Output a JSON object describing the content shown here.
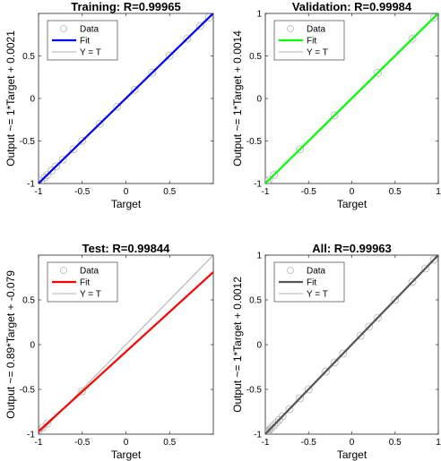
{
  "chart_data": [
    {
      "type": "scatter",
      "title": "Training: R=0.99965",
      "xlabel": "Target",
      "ylabel": "Output ~= 1*Target + 0.0021",
      "xlim": [
        -1,
        1
      ],
      "ylim": [
        -1,
        1
      ],
      "xticks": [
        -1,
        -0.5,
        0,
        0.5
      ],
      "yticks": [
        -1,
        -0.5,
        0,
        0.5
      ],
      "xtick_labels": [
        "-1",
        "-0.5",
        "0",
        "0.5"
      ],
      "ytick_labels": [
        "-1",
        "-0.5",
        "0",
        "0.5"
      ],
      "fit": {
        "slope": 1,
        "intercept": 0.0021,
        "color": "#0000ff"
      },
      "identity_color": "#9a9a9a",
      "points": {
        "x": [
          -1,
          -0.97,
          -0.93,
          -0.9,
          -0.85,
          -0.8,
          -0.72,
          -0.6,
          -0.5,
          -0.3,
          -0.1,
          0.1,
          0.3,
          0.5,
          0.7,
          0.85,
          0.95
        ],
        "y": [
          -1,
          -0.966,
          -0.93,
          -0.9,
          -0.848,
          -0.797,
          -0.717,
          -0.598,
          -0.497,
          -0.298,
          -0.097,
          0.102,
          0.302,
          0.502,
          0.703,
          0.852,
          0.952
        ]
      },
      "legend": {
        "placement": "top-left",
        "entries": [
          "Data",
          "Fit",
          "Y = T"
        ]
      }
    },
    {
      "type": "scatter",
      "title": "Validation: R=0.99984",
      "xlabel": "Target",
      "ylabel": "Output ~= 1*Target + 0.0014",
      "xlim": [
        -1,
        1
      ],
      "ylim": [
        -1,
        1
      ],
      "xticks": [
        -1,
        -0.5,
        0,
        0.5,
        1
      ],
      "yticks": [
        -1,
        -0.5,
        0,
        0.5,
        1
      ],
      "xtick_labels": [
        "-1",
        "-0.5",
        "0",
        "0.5",
        "1"
      ],
      "ytick_labels": [
        "-1",
        "-0.5",
        "0",
        "0.5",
        "1"
      ],
      "fit": {
        "slope": 1,
        "intercept": 0.0014,
        "color": "#00ff00"
      },
      "identity_color": "#9a9a9a",
      "points": {
        "x": [
          -1,
          -0.98,
          -0.96,
          -0.9,
          -0.6,
          -0.2,
          0.3,
          0.7,
          0.95,
          1
        ],
        "y": [
          -1,
          -0.978,
          -0.958,
          -0.899,
          -0.598,
          -0.198,
          0.302,
          0.701,
          0.951,
          1
        ]
      },
      "legend": {
        "placement": "top-left",
        "entries": [
          "Data",
          "Fit",
          "Y = T"
        ]
      }
    },
    {
      "type": "scatter",
      "title": "Test: R=0.99844",
      "xlabel": "Target",
      "ylabel": "Output ~= 0.89*Target + -0.079",
      "xlim": [
        -1,
        1
      ],
      "ylim": [
        -1,
        1
      ],
      "xticks": [
        -1,
        -0.5,
        0,
        0.5
      ],
      "yticks": [
        -1,
        -0.5,
        0,
        0.5
      ],
      "xtick_labels": [
        "-1",
        "-0.5",
        "0",
        "0.5"
      ],
      "ytick_labels": [
        "-1",
        "-0.5",
        "0",
        "0.5"
      ],
      "fit": {
        "slope": 0.89,
        "intercept": -0.079,
        "color": "#ff0000"
      },
      "identity_color": "#9a9a9a",
      "points": {
        "x": [
          -1,
          -0.95,
          -0.9,
          -0.5
        ],
        "y": [
          -0.97,
          -0.925,
          -0.88,
          -0.52
        ]
      },
      "legend": {
        "placement": "top-left",
        "entries": [
          "Data",
          "Fit",
          "Y = T"
        ]
      }
    },
    {
      "type": "scatter",
      "title": "All: R=0.99963",
      "xlabel": "Target",
      "ylabel": "Output ~= 1*Target + 0.0012",
      "xlim": [
        -1,
        1
      ],
      "ylim": [
        -1,
        1
      ],
      "xticks": [
        -1,
        -0.5,
        0,
        0.5,
        1
      ],
      "yticks": [
        -1,
        -0.5,
        0,
        0.5,
        1
      ],
      "xtick_labels": [
        "-1",
        "-0.5",
        "0",
        "0.5",
        "1"
      ],
      "ytick_labels": [
        "-1",
        "-0.5",
        "0",
        "0.5",
        "1"
      ],
      "fit": {
        "slope": 1,
        "intercept": 0.0012,
        "color": "#555555"
      },
      "identity_color": "#9a9a9a",
      "points": {
        "x": [
          -1,
          -0.99,
          -0.98,
          -0.97,
          -0.96,
          -0.95,
          -0.93,
          -0.9,
          -0.87,
          -0.84,
          -0.8,
          -0.72,
          -0.6,
          -0.5,
          -0.3,
          -0.2,
          -0.1,
          0.1,
          0.2,
          0.3,
          0.5,
          0.7,
          0.85,
          0.95,
          1
        ],
        "y": [
          -1,
          -0.99,
          -0.981,
          -0.968,
          -0.962,
          -0.95,
          -0.93,
          -0.9,
          -0.87,
          -0.84,
          -0.8,
          -0.72,
          -0.6,
          -0.5,
          -0.3,
          -0.2,
          -0.1,
          0.1,
          0.2,
          0.3,
          0.5,
          0.7,
          0.85,
          0.95,
          1
        ]
      },
      "legend": {
        "placement": "top-left",
        "entries": [
          "Data",
          "Fit",
          "Y = T"
        ]
      }
    }
  ]
}
